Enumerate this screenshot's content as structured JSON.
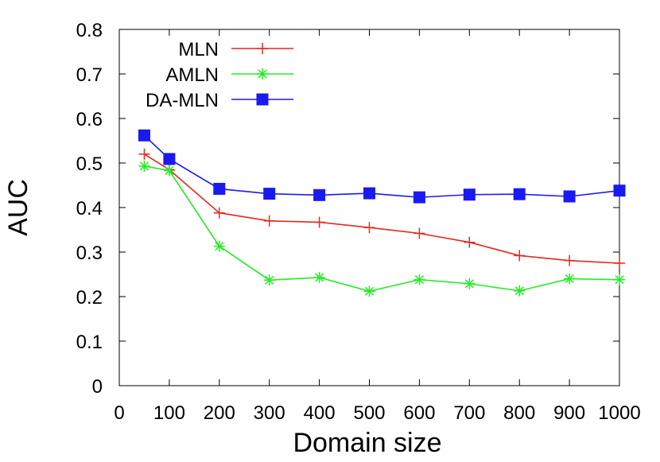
{
  "chart_data": {
    "type": "line",
    "xlabel": "Domain size",
    "ylabel": "AUC",
    "xlim": [
      0,
      1000
    ],
    "ylim": [
      0,
      0.8
    ],
    "xticks": [
      0,
      100,
      200,
      300,
      400,
      500,
      600,
      700,
      800,
      900,
      1000
    ],
    "yticks": [
      0,
      0.1,
      0.2,
      0.3,
      0.4,
      0.5,
      0.6,
      0.7,
      0.8
    ],
    "ytick_labels": [
      "0",
      "0.1",
      "0.2",
      "0.3",
      "0.4",
      "0.5",
      "0.6",
      "0.7",
      "0.8"
    ],
    "grid": false,
    "legend_position": "top-left",
    "x": [
      50,
      100,
      200,
      300,
      400,
      500,
      600,
      700,
      800,
      900,
      1000
    ],
    "series": [
      {
        "name": "MLN",
        "color": "#e8281e",
        "marker": "plus",
        "values": [
          0.52,
          0.485,
          0.388,
          0.37,
          0.367,
          0.355,
          0.342,
          0.322,
          0.292,
          0.281,
          0.275
        ]
      },
      {
        "name": "AMLN",
        "color": "#22ee22",
        "marker": "asterisk",
        "values": [
          0.493,
          0.483,
          0.313,
          0.237,
          0.243,
          0.212,
          0.238,
          0.229,
          0.213,
          0.24,
          0.238
        ]
      },
      {
        "name": "DA-MLN",
        "color": "#1a1af0",
        "marker": "square",
        "values": [
          0.562,
          0.509,
          0.442,
          0.431,
          0.428,
          0.432,
          0.423,
          0.429,
          0.43,
          0.425,
          0.438
        ]
      }
    ]
  }
}
